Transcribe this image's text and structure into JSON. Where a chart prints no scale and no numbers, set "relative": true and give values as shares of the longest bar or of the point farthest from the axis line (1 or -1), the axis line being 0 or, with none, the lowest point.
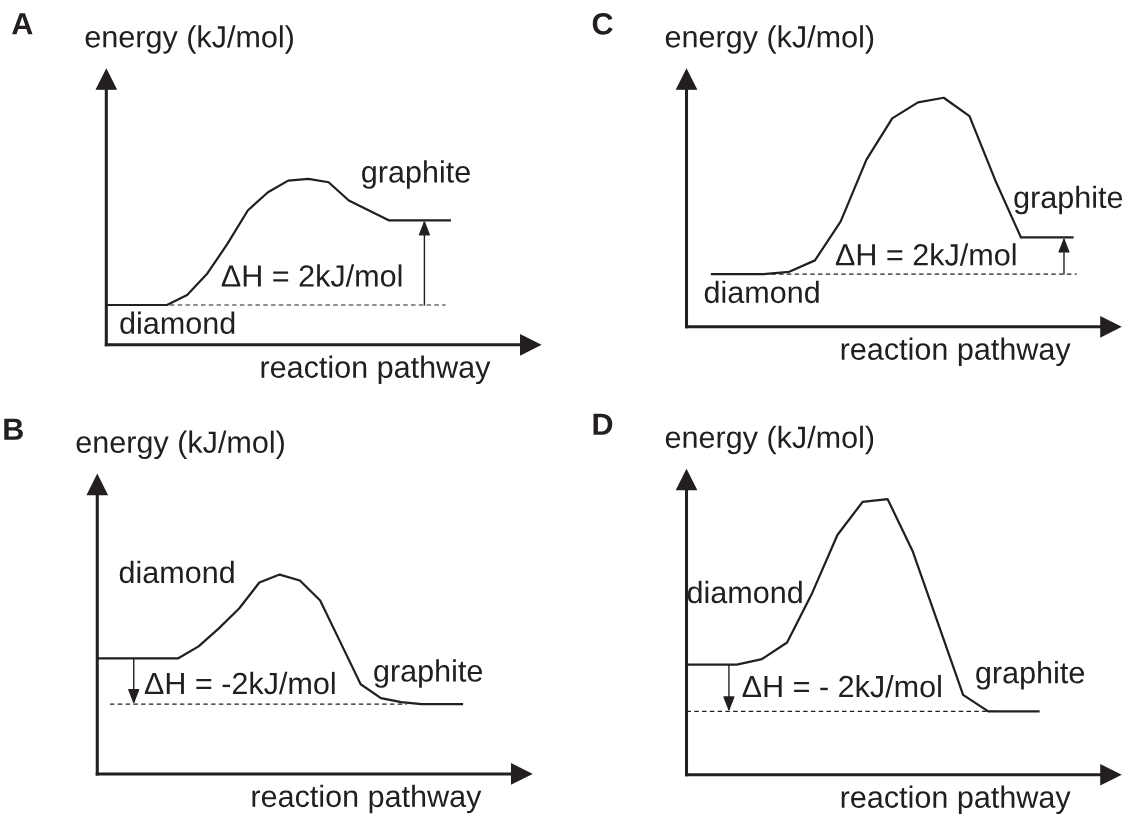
{
  "chart_data": [
    {
      "type": "line",
      "title": "A",
      "ylabel": "energy (kJ/mol)",
      "xlabel": "reaction pathway",
      "relative": true,
      "categories": [
        null,
        null,
        null,
        null,
        null,
        null,
        null,
        null,
        null,
        null,
        null,
        null,
        null,
        null,
        null,
        null,
        null,
        null
      ],
      "series": [
        {
          "color": "#231f20",
          "values": [
            0.24,
            0.24,
            0.24,
            0.24,
            0.3,
            0.43,
            0.61,
            0.81,
            0.92,
            0.99,
            1,
            0.98,
            0.87,
            0.81,
            0.75,
            0.75,
            0.75,
            0.75
          ]
        }
      ],
      "ref_lines": [
        {
          "axis": "y",
          "value": 0.24,
          "line_style": "dashed",
          "color": "#231f20"
        }
      ],
      "annotations": [
        {
          "text": "diamond",
          "y": 0.24
        },
        {
          "text": "graphite",
          "y": 0.75
        },
        "ΔH = 2kJ/mol"
      ]
    },
    {
      "type": "line",
      "title": "C",
      "ylabel": "energy (kJ/mol)",
      "xlabel": "reaction pathway",
      "relative": true,
      "categories": [
        null,
        null,
        null,
        null,
        null,
        null,
        null,
        null,
        null,
        null,
        null,
        null,
        null,
        null,
        null
      ],
      "series": [
        {
          "color": "#231f20",
          "values": [
            0.23,
            0.23,
            0.23,
            0.24,
            0.29,
            0.46,
            0.73,
            0.91,
            0.98,
            1,
            0.92,
            0.64,
            0.39,
            0.39,
            0.39
          ]
        }
      ],
      "ref_lines": [
        {
          "axis": "y",
          "value": 0.23,
          "line_style": "dashed",
          "color": "#231f20"
        }
      ],
      "annotations": [
        {
          "text": "diamond",
          "y": 0.23
        },
        {
          "text": "graphite",
          "y": 0.39
        },
        "ΔH = 2kJ/mol"
      ]
    },
    {
      "type": "line",
      "title": "B",
      "ylabel": "energy (kJ/mol)",
      "xlabel": "reaction pathway",
      "relative": true,
      "categories": [
        null,
        null,
        null,
        null,
        null,
        null,
        null,
        null,
        null,
        null,
        null,
        null,
        null,
        null,
        null,
        null,
        null,
        null,
        null
      ],
      "series": [
        {
          "color": "#231f20",
          "values": [
            0.58,
            0.58,
            0.58,
            0.58,
            0.58,
            0.64,
            0.73,
            0.83,
            0.96,
            1,
            0.97,
            0.87,
            0.66,
            0.45,
            0.38,
            0.36,
            0.35,
            0.35,
            0.35
          ]
        }
      ],
      "ref_lines": [
        {
          "axis": "y",
          "value": 0.35,
          "line_style": "dashed",
          "color": "#231f20"
        }
      ],
      "annotations": [
        {
          "text": "diamond",
          "y": 0.58
        },
        {
          "text": "graphite",
          "y": 0.35
        },
        "ΔH = -2kJ/mol"
      ]
    },
    {
      "type": "line",
      "title": "D",
      "ylabel": "energy (kJ/mol)",
      "xlabel": "reaction pathway",
      "relative": true,
      "categories": [
        null,
        null,
        null,
        null,
        null,
        null,
        null,
        null,
        null,
        null,
        null,
        null,
        null,
        null,
        null
      ],
      "series": [
        {
          "color": "#231f20",
          "values": [
            0.4,
            0.4,
            0.4,
            0.42,
            0.48,
            0.66,
            0.87,
            0.99,
            1,
            0.81,
            0.55,
            0.29,
            0.23,
            0.23,
            0.23
          ]
        }
      ],
      "ref_lines": [
        {
          "axis": "y",
          "value": 0.23,
          "line_style": "dashed",
          "color": "#231f20"
        }
      ],
      "annotations": [
        {
          "text": "diamond",
          "y": 0.4
        },
        {
          "text": "graphite",
          "y": 0.23
        },
        "ΔH = - 2kJ/mol"
      ]
    }
  ]
}
